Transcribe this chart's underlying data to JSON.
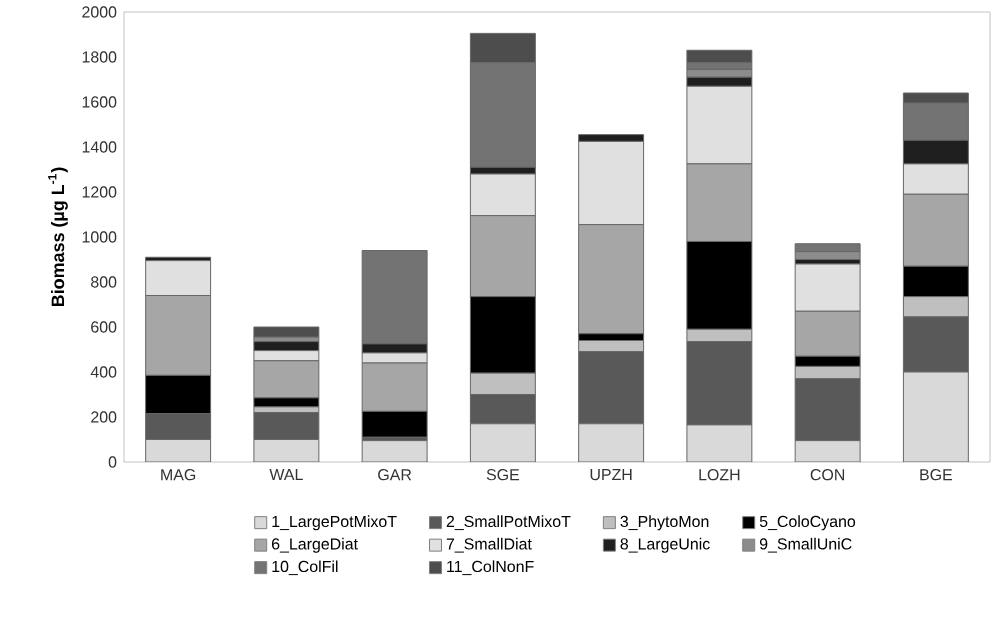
{
  "chart_data": {
    "type": "bar",
    "stacked": true,
    "ylabel": "Biomass (µg L$^{-1}$)",
    "categories": [
      "MAG",
      "WAL",
      "GAR",
      "SGE",
      "UPZH",
      "LOZH",
      "CON",
      "BGE"
    ],
    "ylim": [
      0,
      2000
    ],
    "yticks": [
      0,
      200,
      400,
      600,
      800,
      1000,
      1200,
      1400,
      1600,
      1800,
      2000
    ],
    "grid": false,
    "legend": "bottom",
    "series": [
      {
        "name": "1_LargePotMixoT",
        "color": "#d9d9d9",
        "values": [
          100,
          100,
          95,
          170,
          170,
          165,
          95,
          400
        ]
      },
      {
        "name": "2_SmallPotMixoT",
        "color": "#595959",
        "values": [
          115,
          120,
          15,
          130,
          320,
          370,
          275,
          245
        ]
      },
      {
        "name": "3_PhytoMon",
        "color": "#bfbfbf",
        "values": [
          0,
          25,
          0,
          95,
          50,
          55,
          55,
          90
        ]
      },
      {
        "name": "5_ColoCyano",
        "color": "#000000",
        "values": [
          170,
          40,
          115,
          340,
          30,
          390,
          45,
          135
        ]
      },
      {
        "name": "6_LargeDiat",
        "color": "#a6a6a6",
        "values": [
          355,
          165,
          215,
          360,
          485,
          345,
          200,
          320
        ]
      },
      {
        "name": "7_SmallDiat",
        "color": "#e0e0e0",
        "values": [
          155,
          45,
          45,
          185,
          370,
          345,
          210,
          135
        ]
      },
      {
        "name": "8_LargeUnic",
        "color": "#1f1f1f",
        "values": [
          15,
          40,
          40,
          30,
          30,
          40,
          20,
          105
        ]
      },
      {
        "name": "9_SmallUniC",
        "color": "#8c8c8c",
        "values": [
          0,
          20,
          0,
          0,
          0,
          35,
          35,
          0
        ]
      },
      {
        "name": "10_ColFil",
        "color": "#737373",
        "values": [
          0,
          0,
          415,
          465,
          0,
          30,
          35,
          165
        ]
      },
      {
        "name": "11_ColNonF",
        "color": "#4d4d4d",
        "values": [
          0,
          45,
          0,
          130,
          0,
          55,
          0,
          45
        ]
      }
    ]
  }
}
